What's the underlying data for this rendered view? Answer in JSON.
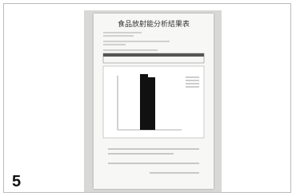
{
  "panel": {
    "number": "5"
  },
  "document": {
    "title": "食品放射能分析結果表"
  }
}
